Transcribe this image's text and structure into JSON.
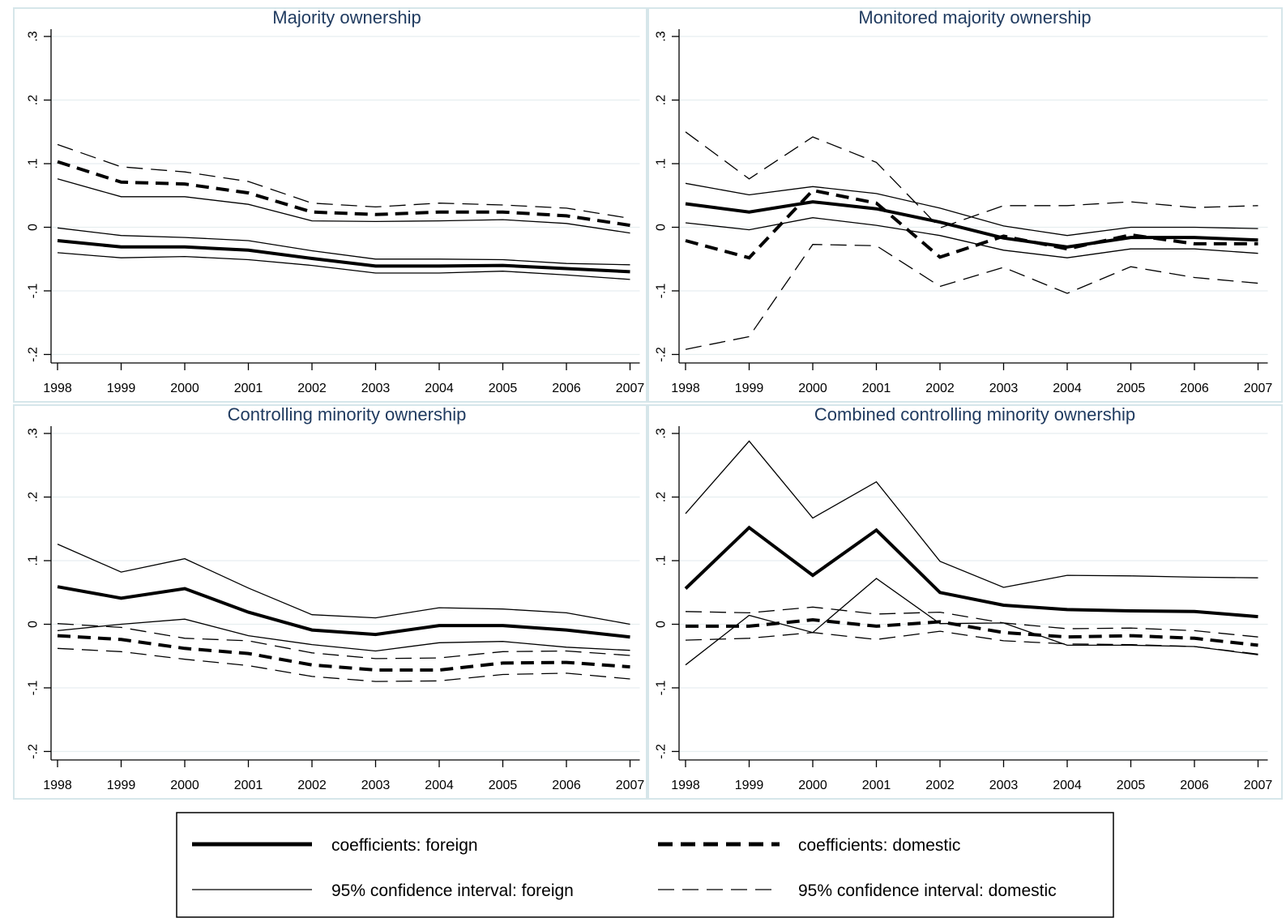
{
  "chart_data": [
    {
      "type": "line",
      "title": "Majority ownership",
      "x": [
        "1998",
        "1999",
        "2000",
        "2001",
        "2002",
        "2003",
        "2004",
        "2005",
        "2006",
        "2007"
      ],
      "ylim": [
        -0.2,
        0.3
      ],
      "yticks": [
        "-.2",
        "-.1",
        "0",
        ".1",
        ".2",
        ".3"
      ],
      "grid": true,
      "series": [
        {
          "name": "coefficients: foreign",
          "style": "thick-solid",
          "values": [
            -0.021,
            -0.031,
            -0.031,
            -0.036,
            -0.049,
            -0.061,
            -0.061,
            -0.06,
            -0.065,
            -0.07
          ]
        },
        {
          "name": "coefficients: domestic",
          "style": "thick-dashed",
          "values": [
            0.103,
            0.071,
            0.068,
            0.054,
            0.024,
            0.02,
            0.024,
            0.024,
            0.018,
            0.003
          ]
        },
        {
          "name": "95% confidence interval: foreign",
          "style": "thin-solid",
          "values": [
            -0.001,
            -0.013,
            -0.016,
            -0.021,
            -0.037,
            -0.05,
            -0.05,
            -0.051,
            -0.057,
            -0.059
          ]
        },
        {
          "name": "95% confidence interval: foreign",
          "style": "thin-solid",
          "values": [
            -0.04,
            -0.048,
            -0.046,
            -0.051,
            -0.06,
            -0.072,
            -0.072,
            -0.069,
            -0.075,
            -0.082
          ]
        },
        {
          "name": "95% confidence interval: foreign",
          "style": "thin-solid",
          "values": [
            0.076,
            0.048,
            0.048,
            0.036,
            0.01,
            0.009,
            0.01,
            0.012,
            0.006,
            -0.009
          ]
        },
        {
          "name": "95% confidence interval: domestic",
          "style": "thin-dashed",
          "values": [
            0.13,
            0.095,
            0.087,
            0.072,
            0.038,
            0.032,
            0.038,
            0.035,
            0.03,
            0.014
          ]
        }
      ]
    },
    {
      "type": "line",
      "title": "Monitored majority ownership",
      "x": [
        "1998",
        "1999",
        "2000",
        "2001",
        "2002",
        "2003",
        "2004",
        "2005",
        "2006",
        "2007"
      ],
      "ylim": [
        -0.2,
        0.3
      ],
      "yticks": [
        "-.2",
        "-.1",
        "0",
        ".1",
        ".2",
        ".3"
      ],
      "grid": true,
      "series": [
        {
          "name": "coefficients: foreign",
          "style": "thick-solid",
          "values": [
            0.037,
            0.024,
            0.04,
            0.029,
            0.008,
            -0.017,
            -0.031,
            -0.016,
            -0.016,
            -0.02
          ]
        },
        {
          "name": "coefficients: domestic",
          "style": "thick-dashed",
          "values": [
            -0.021,
            -0.048,
            0.058,
            0.038,
            -0.047,
            -0.014,
            -0.034,
            -0.012,
            -0.026,
            -0.026
          ]
        },
        {
          "name": "95% confidence interval: foreign",
          "style": "thin-solid",
          "values": [
            0.069,
            0.051,
            0.064,
            0.053,
            0.03,
            0.002,
            -0.013,
            0.0,
            0.0,
            -0.002
          ]
        },
        {
          "name": "95% confidence interval: foreign",
          "style": "thin-solid",
          "values": [
            0.007,
            -0.004,
            0.015,
            0.003,
            -0.013,
            -0.036,
            -0.048,
            -0.034,
            -0.034,
            -0.041
          ]
        },
        {
          "name": "95% confidence interval: domestic",
          "style": "thin-dashed",
          "values": [
            0.15,
            0.076,
            0.142,
            0.102,
            -0.001,
            0.034,
            0.034,
            0.04,
            0.031,
            0.034
          ]
        },
        {
          "name": "95% confidence interval: domestic",
          "style": "thin-dashed",
          "values": [
            -0.192,
            -0.172,
            -0.027,
            -0.029,
            -0.093,
            -0.063,
            -0.104,
            -0.062,
            -0.079,
            -0.088
          ]
        }
      ]
    },
    {
      "type": "line",
      "title": "Controlling minority ownership",
      "x": [
        "1998",
        "1999",
        "2000",
        "2001",
        "2002",
        "2003",
        "2004",
        "2005",
        "2006",
        "2007"
      ],
      "ylim": [
        -0.2,
        0.3
      ],
      "yticks": [
        "-.2",
        "-.1",
        "0",
        ".1",
        ".2",
        ".3"
      ],
      "grid": true,
      "series": [
        {
          "name": "coefficients: foreign",
          "style": "thick-solid",
          "values": [
            0.059,
            0.041,
            0.056,
            0.019,
            -0.009,
            -0.016,
            -0.002,
            -0.002,
            -0.009,
            -0.02
          ]
        },
        {
          "name": "coefficients: domestic",
          "style": "thick-dashed",
          "values": [
            -0.018,
            -0.024,
            -0.038,
            -0.046,
            -0.064,
            -0.072,
            -0.072,
            -0.061,
            -0.06,
            -0.067
          ]
        },
        {
          "name": "95% confidence interval: foreign",
          "style": "thin-solid",
          "values": [
            0.126,
            0.082,
            0.103,
            0.057,
            0.015,
            0.01,
            0.026,
            0.024,
            0.018,
            0.0
          ]
        },
        {
          "name": "95% confidence interval: foreign",
          "style": "thin-solid",
          "values": [
            -0.01,
            0.0,
            0.008,
            -0.018,
            -0.032,
            -0.042,
            -0.029,
            -0.027,
            -0.036,
            -0.041
          ]
        },
        {
          "name": "95% confidence interval: domestic",
          "style": "thin-dashed",
          "values": [
            0.001,
            -0.005,
            -0.022,
            -0.026,
            -0.045,
            -0.054,
            -0.053,
            -0.043,
            -0.042,
            -0.049
          ]
        },
        {
          "name": "95% confidence interval: domestic",
          "style": "thin-dashed",
          "values": [
            -0.038,
            -0.043,
            -0.055,
            -0.065,
            -0.082,
            -0.09,
            -0.089,
            -0.079,
            -0.077,
            -0.086
          ]
        }
      ]
    },
    {
      "type": "line",
      "title": "Combined controlling minority ownership",
      "x": [
        "1998",
        "1999",
        "2000",
        "2001",
        "2002",
        "2003",
        "2004",
        "2005",
        "2006",
        "2007"
      ],
      "ylim": [
        -0.2,
        0.3
      ],
      "yticks": [
        "-.2",
        "-.1",
        "0",
        ".1",
        ".2",
        ".3"
      ],
      "grid": true,
      "series": [
        {
          "name": "coefficients: foreign",
          "style": "thick-solid",
          "values": [
            0.056,
            0.152,
            0.077,
            0.148,
            0.05,
            0.03,
            0.023,
            0.021,
            0.02,
            0.012
          ]
        },
        {
          "name": "coefficients: domestic",
          "style": "thick-dashed",
          "values": [
            -0.003,
            -0.003,
            0.007,
            -0.003,
            0.004,
            -0.013,
            -0.02,
            -0.018,
            -0.022,
            -0.033
          ]
        },
        {
          "name": "95% confidence interval: foreign",
          "style": "thin-solid",
          "values": [
            0.174,
            0.288,
            0.167,
            0.224,
            0.099,
            0.058,
            0.077,
            0.076,
            0.074,
            0.073
          ]
        },
        {
          "name": "95% confidence interval: foreign",
          "style": "thin-solid",
          "values": [
            -0.064,
            0.014,
            -0.013,
            0.072,
            0.001,
            0.002,
            -0.033,
            -0.033,
            -0.035,
            -0.048
          ]
        },
        {
          "name": "95% confidence interval: domestic",
          "style": "thin-dashed",
          "values": [
            0.02,
            0.018,
            0.027,
            0.016,
            0.019,
            0.002,
            -0.007,
            -0.006,
            -0.01,
            -0.02
          ]
        },
        {
          "name": "95% confidence interval: domestic",
          "style": "thin-dashed",
          "values": [
            -0.025,
            -0.022,
            -0.013,
            -0.024,
            -0.011,
            -0.026,
            -0.031,
            -0.032,
            -0.035,
            -0.047
          ]
        }
      ]
    }
  ],
  "legend": {
    "placement": "bottom",
    "entries": [
      {
        "label": "coefficients: foreign",
        "style": "thick-solid"
      },
      {
        "label": "coefficients: domestic",
        "style": "thick-dashed"
      },
      {
        "label": "95% confidence interval: foreign",
        "style": "thin-solid"
      },
      {
        "label": "95% confidence interval: domestic",
        "style": "thin-dashed"
      }
    ]
  }
}
